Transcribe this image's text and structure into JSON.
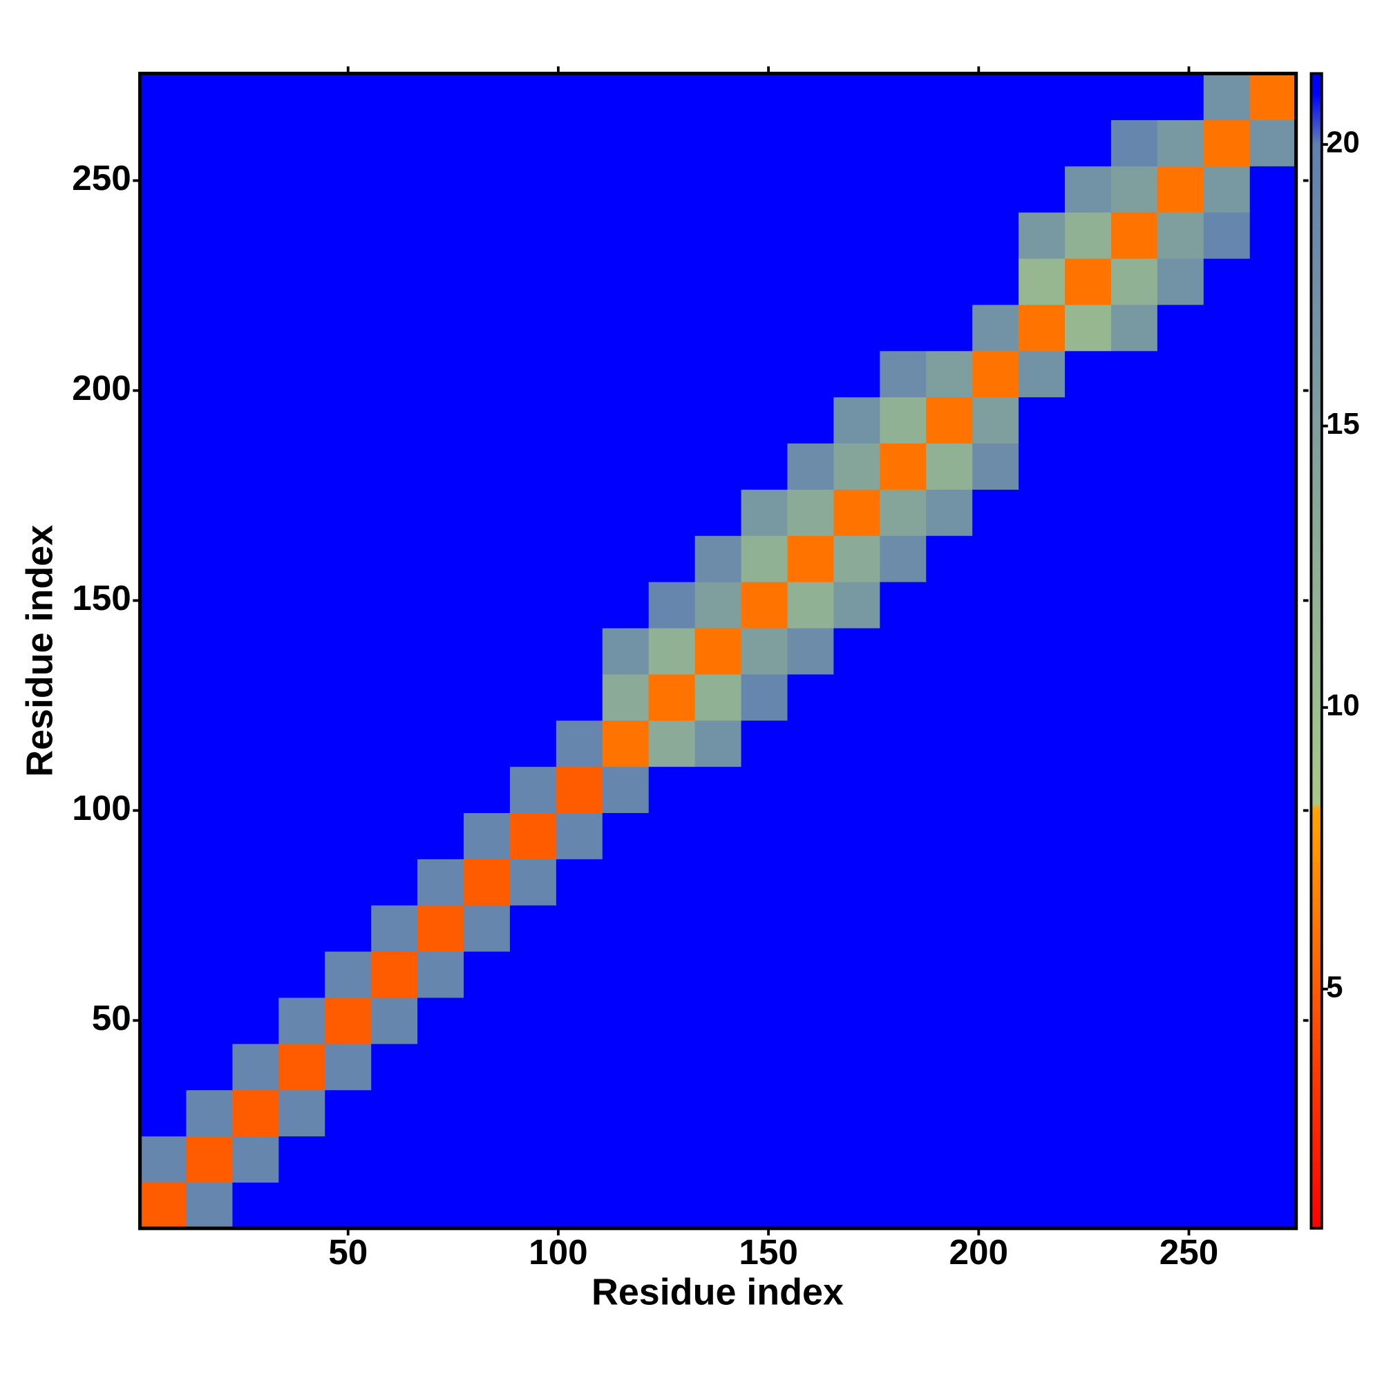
{
  "chart_data": {
    "type": "heatmap",
    "x_label": "Residue index",
    "y_label": "Residue index",
    "x": [
      6,
      17,
      28,
      39,
      50,
      61,
      72,
      83,
      94,
      105,
      116,
      127,
      138,
      149,
      160,
      171,
      182,
      193,
      204,
      215,
      226,
      237,
      248,
      259,
      270
    ],
    "y": [
      6,
      17,
      28,
      39,
      50,
      61,
      72,
      83,
      94,
      105,
      116,
      127,
      138,
      149,
      160,
      171,
      182,
      193,
      204,
      215,
      226,
      237,
      248,
      259,
      270
    ],
    "z": [
      [
        5,
        19,
        21,
        21,
        21,
        21,
        21,
        21,
        21,
        21,
        21,
        21,
        21,
        21,
        21,
        21,
        21,
        21,
        21,
        21,
        21,
        21,
        21,
        21,
        21
      ],
      [
        19,
        5,
        19,
        21,
        21,
        21,
        21,
        21,
        21,
        21,
        21,
        21,
        21,
        21,
        21,
        21,
        21,
        21,
        21,
        21,
        21,
        21,
        21,
        21,
        21
      ],
      [
        21,
        19,
        5,
        19,
        21,
        21,
        21,
        21,
        21,
        21,
        21,
        21,
        21,
        21,
        21,
        21,
        21,
        21,
        21,
        21,
        21,
        21,
        21,
        21,
        21
      ],
      [
        21,
        21,
        19,
        5,
        19,
        21,
        21,
        21,
        21,
        21,
        21,
        21,
        21,
        21,
        21,
        21,
        21,
        21,
        21,
        21,
        21,
        21,
        21,
        21,
        21
      ],
      [
        21,
        21,
        21,
        19,
        5,
        19,
        21,
        21,
        21,
        21,
        21,
        21,
        21,
        21,
        21,
        21,
        21,
        21,
        21,
        21,
        21,
        21,
        21,
        21,
        21
      ],
      [
        21,
        21,
        21,
        21,
        19,
        5,
        19,
        21,
        21,
        21,
        21,
        21,
        21,
        21,
        21,
        21,
        21,
        21,
        21,
        21,
        21,
        21,
        21,
        21,
        21
      ],
      [
        21,
        21,
        21,
        21,
        21,
        19,
        5,
        19,
        21,
        21,
        21,
        21,
        21,
        21,
        21,
        21,
        21,
        21,
        21,
        21,
        21,
        21,
        21,
        21,
        21
      ],
      [
        21,
        21,
        21,
        21,
        21,
        21,
        19,
        5,
        19,
        21,
        21,
        21,
        21,
        21,
        21,
        21,
        21,
        21,
        21,
        21,
        21,
        21,
        21,
        21,
        21
      ],
      [
        21,
        21,
        21,
        21,
        21,
        21,
        21,
        19,
        5,
        19,
        21,
        21,
        21,
        21,
        21,
        21,
        21,
        21,
        21,
        21,
        21,
        21,
        21,
        21,
        21
      ],
      [
        21,
        21,
        21,
        21,
        21,
        21,
        21,
        21,
        19,
        5,
        19,
        21,
        21,
        21,
        21,
        21,
        21,
        21,
        21,
        21,
        21,
        21,
        21,
        21,
        21
      ],
      [
        21,
        21,
        21,
        21,
        21,
        21,
        21,
        21,
        21,
        19,
        6,
        13,
        17,
        21,
        21,
        21,
        21,
        21,
        21,
        21,
        21,
        21,
        21,
        21,
        21
      ],
      [
        21,
        21,
        21,
        21,
        21,
        21,
        21,
        21,
        21,
        21,
        13,
        6,
        12,
        19,
        21,
        21,
        21,
        21,
        21,
        21,
        21,
        21,
        21,
        21,
        21
      ],
      [
        21,
        21,
        21,
        21,
        21,
        21,
        21,
        21,
        21,
        21,
        17,
        12,
        6,
        15,
        18,
        21,
        21,
        21,
        21,
        21,
        21,
        21,
        21,
        21,
        21
      ],
      [
        21,
        21,
        21,
        21,
        21,
        21,
        21,
        21,
        21,
        21,
        21,
        19,
        15,
        6,
        12,
        16,
        21,
        21,
        21,
        21,
        21,
        21,
        21,
        21,
        21
      ],
      [
        21,
        21,
        21,
        21,
        21,
        21,
        21,
        21,
        21,
        21,
        21,
        21,
        18,
        12,
        6,
        13,
        18,
        21,
        21,
        21,
        21,
        21,
        21,
        21,
        21
      ],
      [
        21,
        21,
        21,
        21,
        21,
        21,
        21,
        21,
        21,
        21,
        21,
        21,
        21,
        16,
        13,
        6,
        14,
        17,
        21,
        21,
        21,
        21,
        21,
        21,
        21
      ],
      [
        21,
        21,
        21,
        21,
        21,
        21,
        21,
        21,
        21,
        21,
        21,
        21,
        21,
        21,
        18,
        14,
        6,
        12,
        18,
        21,
        21,
        21,
        21,
        21,
        21
      ],
      [
        21,
        21,
        21,
        21,
        21,
        21,
        21,
        21,
        21,
        21,
        21,
        21,
        21,
        21,
        21,
        17,
        12,
        6,
        15,
        21,
        21,
        21,
        21,
        21,
        21
      ],
      [
        21,
        21,
        21,
        21,
        21,
        21,
        21,
        21,
        21,
        21,
        21,
        21,
        21,
        21,
        21,
        21,
        18,
        15,
        6,
        17,
        21,
        21,
        21,
        21,
        21
      ],
      [
        21,
        21,
        21,
        21,
        21,
        21,
        21,
        21,
        21,
        21,
        21,
        21,
        21,
        21,
        21,
        21,
        21,
        21,
        17,
        6,
        11,
        16,
        21,
        21,
        21
      ],
      [
        21,
        21,
        21,
        21,
        21,
        21,
        21,
        21,
        21,
        21,
        21,
        21,
        21,
        21,
        21,
        21,
        21,
        21,
        21,
        11,
        6,
        12,
        17,
        21,
        21
      ],
      [
        21,
        21,
        21,
        21,
        21,
        21,
        21,
        21,
        21,
        21,
        21,
        21,
        21,
        21,
        21,
        21,
        21,
        21,
        21,
        16,
        12,
        6,
        15,
        19,
        21
      ],
      [
        21,
        21,
        21,
        21,
        21,
        21,
        21,
        21,
        21,
        21,
        21,
        21,
        21,
        21,
        21,
        21,
        21,
        21,
        21,
        21,
        17,
        15,
        6,
        16,
        21
      ],
      [
        21,
        21,
        21,
        21,
        21,
        21,
        21,
        21,
        21,
        21,
        21,
        21,
        21,
        21,
        21,
        21,
        21,
        21,
        21,
        21,
        21,
        19,
        16,
        6,
        17
      ],
      [
        21,
        21,
        21,
        21,
        21,
        21,
        21,
        21,
        21,
        21,
        21,
        21,
        21,
        21,
        21,
        21,
        21,
        21,
        21,
        21,
        21,
        21,
        21,
        17,
        6
      ]
    ],
    "xlim": [
      0.5,
      275.5
    ],
    "ylim": [
      0.5,
      275.5
    ],
    "xticks": [
      50,
      100,
      150,
      200,
      250
    ],
    "yticks": [
      50,
      100,
      150,
      200,
      250
    ],
    "colorbar": {
      "lim": [
        0.75,
        21.26
      ],
      "ticks": [
        5,
        10,
        15,
        20
      ]
    },
    "colorscale": [
      [
        0.75,
        "#ff0000"
      ],
      [
        4,
        "#ff4500"
      ],
      [
        8.2,
        "#ffa500"
      ],
      [
        8.3,
        "#a8c888"
      ],
      [
        20,
        "#6080b0"
      ],
      [
        20.9,
        "#0000ff"
      ]
    ]
  }
}
